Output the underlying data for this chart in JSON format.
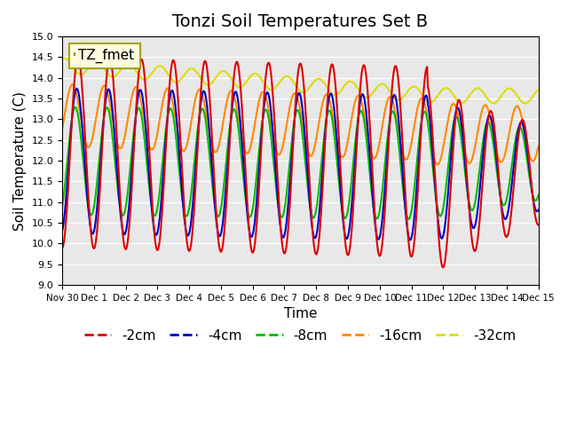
{
  "title": "Tonzi Soil Temperatures Set B",
  "xlabel": "Time",
  "ylabel": "Soil Temperature (C)",
  "ylim": [
    9.0,
    15.0
  ],
  "yticks": [
    9.0,
    9.5,
    10.0,
    10.5,
    11.0,
    11.5,
    12.0,
    12.5,
    13.0,
    13.5,
    14.0,
    14.5,
    15.0
  ],
  "xtick_labels": [
    "Nov 30",
    "Dec 1",
    "Dec 2",
    "Dec 3",
    "Dec 4",
    "Dec 5",
    "Dec 6",
    "Dec 7",
    "Dec 8",
    "Dec 9",
    "Dec 10",
    "Dec 11",
    "Dec 12",
    "Dec 13",
    "Dec 14",
    "Dec 15"
  ],
  "legend_label": "TZ_fmet",
  "series_labels": [
    "-2cm",
    "-4cm",
    "-8cm",
    "-16cm",
    "-32cm"
  ],
  "series_colors": [
    "#dd0000",
    "#0000cc",
    "#00bb00",
    "#ff8800",
    "#dddd00"
  ],
  "background_color": "#e8e8e8",
  "title_fontsize": 14,
  "axis_fontsize": 11,
  "legend_fontsize": 11
}
